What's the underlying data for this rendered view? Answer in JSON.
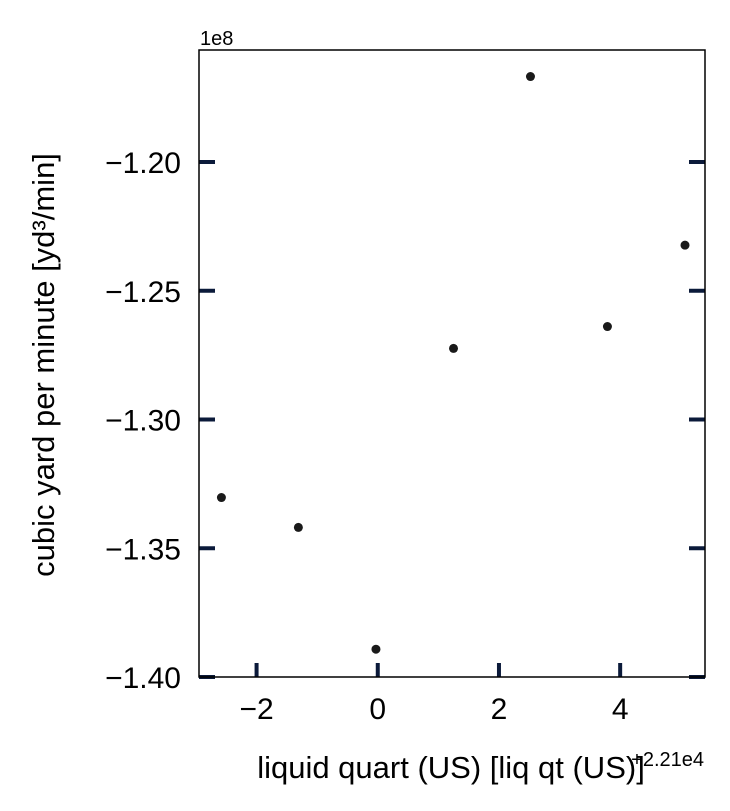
{
  "chart_data": {
    "type": "scatter",
    "xlabel": "liquid quart (US) [liq qt (US)]",
    "ylabel": "cubic yard per minute [yd³/min]",
    "x_offset_text": "+2.21e4",
    "y_offset_text": "1e8",
    "xlim": [
      -2.95,
      5.4
    ],
    "ylim": [
      -1.4,
      -1.1565
    ],
    "x_ticks": [
      -2,
      0,
      2,
      4
    ],
    "x_tick_labels": [
      "−2",
      "0",
      "2",
      "4"
    ],
    "y_ticks": [
      -1.4,
      -1.35,
      -1.3,
      -1.25,
      -1.2
    ],
    "y_tick_labels": [
      "−1.40",
      "−1.35",
      "−1.30",
      "−1.25",
      "−1.20"
    ],
    "grid": false,
    "colors": {
      "point": "#1a1a1a",
      "tick": "#0b1a3a",
      "frame": "#000000"
    },
    "series": [
      {
        "x": [
          -2.58,
          -1.31,
          -0.03,
          1.25,
          2.52,
          3.79,
          5.07
        ],
        "y": [
          -1.3303,
          -1.3419,
          -1.3892,
          -1.2724,
          -1.1668,
          -1.2639,
          -1.2323
        ]
      }
    ]
  }
}
